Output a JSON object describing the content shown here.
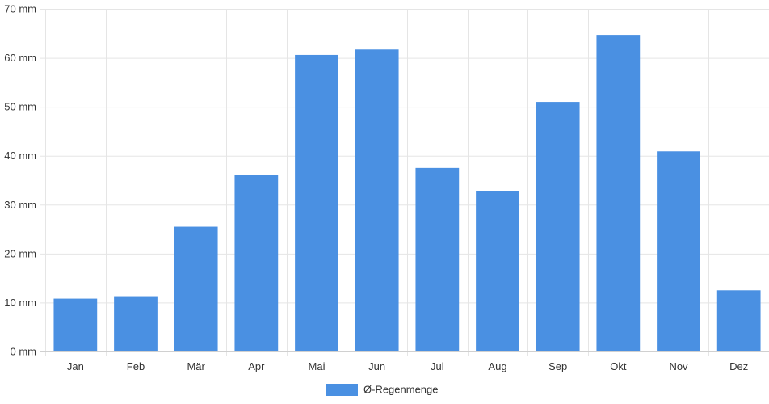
{
  "chart_data": {
    "type": "bar",
    "categories": [
      "Jan",
      "Feb",
      "Mär",
      "Apr",
      "Mai",
      "Jun",
      "Jul",
      "Aug",
      "Sep",
      "Okt",
      "Nov",
      "Dez"
    ],
    "series": [
      {
        "name": "Ø-Regenmenge",
        "values": [
          10.8,
          11.3,
          25.5,
          36.1,
          60.6,
          61.7,
          37.5,
          32.8,
          51.0,
          64.7,
          40.9,
          12.5
        ],
        "color": "#4a90e2"
      }
    ],
    "ylim": [
      0,
      70
    ],
    "yticks": [
      0,
      10,
      20,
      30,
      40,
      50,
      60,
      70
    ],
    "ytick_labels": [
      "0 mm",
      "10 mm",
      "20 mm",
      "30 mm",
      "40 mm",
      "50 mm",
      "60 mm",
      "70 mm"
    ],
    "grid": true,
    "legend_position": "bottom-center"
  }
}
